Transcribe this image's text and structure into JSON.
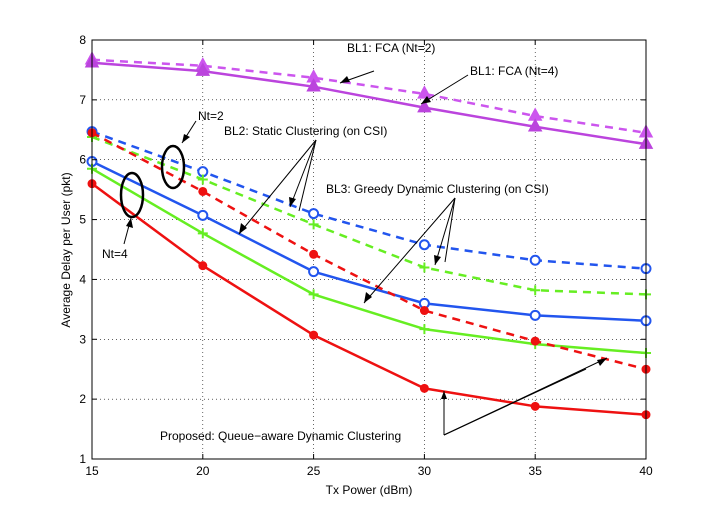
{
  "chart_data": {
    "type": "line",
    "title": "",
    "xlabel": "Tx Power (dBm)",
    "ylabel": "Average Delay per User (pkt)",
    "xlim": [
      15,
      40
    ],
    "ylim": [
      1,
      8
    ],
    "xticks": [
      15,
      20,
      25,
      30,
      35,
      40
    ],
    "yticks": [
      1,
      2,
      3,
      4,
      5,
      6,
      7,
      8
    ],
    "grid": true,
    "x": [
      15,
      20,
      25,
      30,
      35,
      40
    ],
    "series": [
      {
        "name": "BL1: FCA (Nt=2)",
        "color": "#cc55ee",
        "dash": true,
        "marker": "triangle",
        "values": [
          7.67,
          7.57,
          7.37,
          7.1,
          6.73,
          6.45
        ]
      },
      {
        "name": "BL1: FCA (Nt=4)",
        "color": "#bb44dd",
        "dash": false,
        "marker": "triangle",
        "values": [
          7.62,
          7.48,
          7.22,
          6.87,
          6.55,
          6.26
        ]
      },
      {
        "name": "BL2: Static Clustering (on CSI), Nt=2",
        "color": "#2255ee",
        "dash": true,
        "marker": "circle",
        "values": [
          6.47,
          5.8,
          5.1,
          4.58,
          4.32,
          4.18
        ]
      },
      {
        "name": "BL2: Static Clustering (on CSI), Nt=4",
        "color": "#2255ee",
        "dash": false,
        "marker": "circle",
        "values": [
          5.97,
          5.07,
          4.13,
          3.6,
          3.4,
          3.31
        ]
      },
      {
        "name": "BL3: Greedy Dynamic Clustering (on CSI), Nt=2",
        "color": "#66ee22",
        "dash": true,
        "marker": "plus",
        "values": [
          6.38,
          5.67,
          4.92,
          4.2,
          3.82,
          3.75
        ]
      },
      {
        "name": "BL3: Greedy Dynamic Clustering (on CSI), Nt=4",
        "color": "#66ee22",
        "dash": false,
        "marker": "plus",
        "values": [
          5.85,
          4.77,
          3.75,
          3.17,
          2.92,
          2.77
        ]
      },
      {
        "name": "Proposed: Queue-aware Dynamic Clustering, Nt=2",
        "color": "#ee1111",
        "dash": true,
        "marker": "dot",
        "values": [
          6.45,
          5.47,
          4.42,
          3.48,
          2.97,
          2.5
        ]
      },
      {
        "name": "Proposed: Queue-aware Dynamic Clustering, Nt=4",
        "color": "#ee1111",
        "dash": false,
        "marker": "dot",
        "values": [
          5.6,
          4.23,
          3.07,
          2.18,
          1.88,
          1.74
        ]
      }
    ],
    "annotations": [
      {
        "text": "BL1: FCA (Nt=2)"
      },
      {
        "text": "BL1: FCA (Nt=4)"
      },
      {
        "text": "Nt=2"
      },
      {
        "text": "BL2: Static Clustering (on CSI)"
      },
      {
        "text": "BL3: Greedy Dynamic Clustering (on CSI)"
      },
      {
        "text": "Nt=4"
      },
      {
        "text": "Proposed: Queue−aware Dynamic Clustering"
      }
    ]
  }
}
